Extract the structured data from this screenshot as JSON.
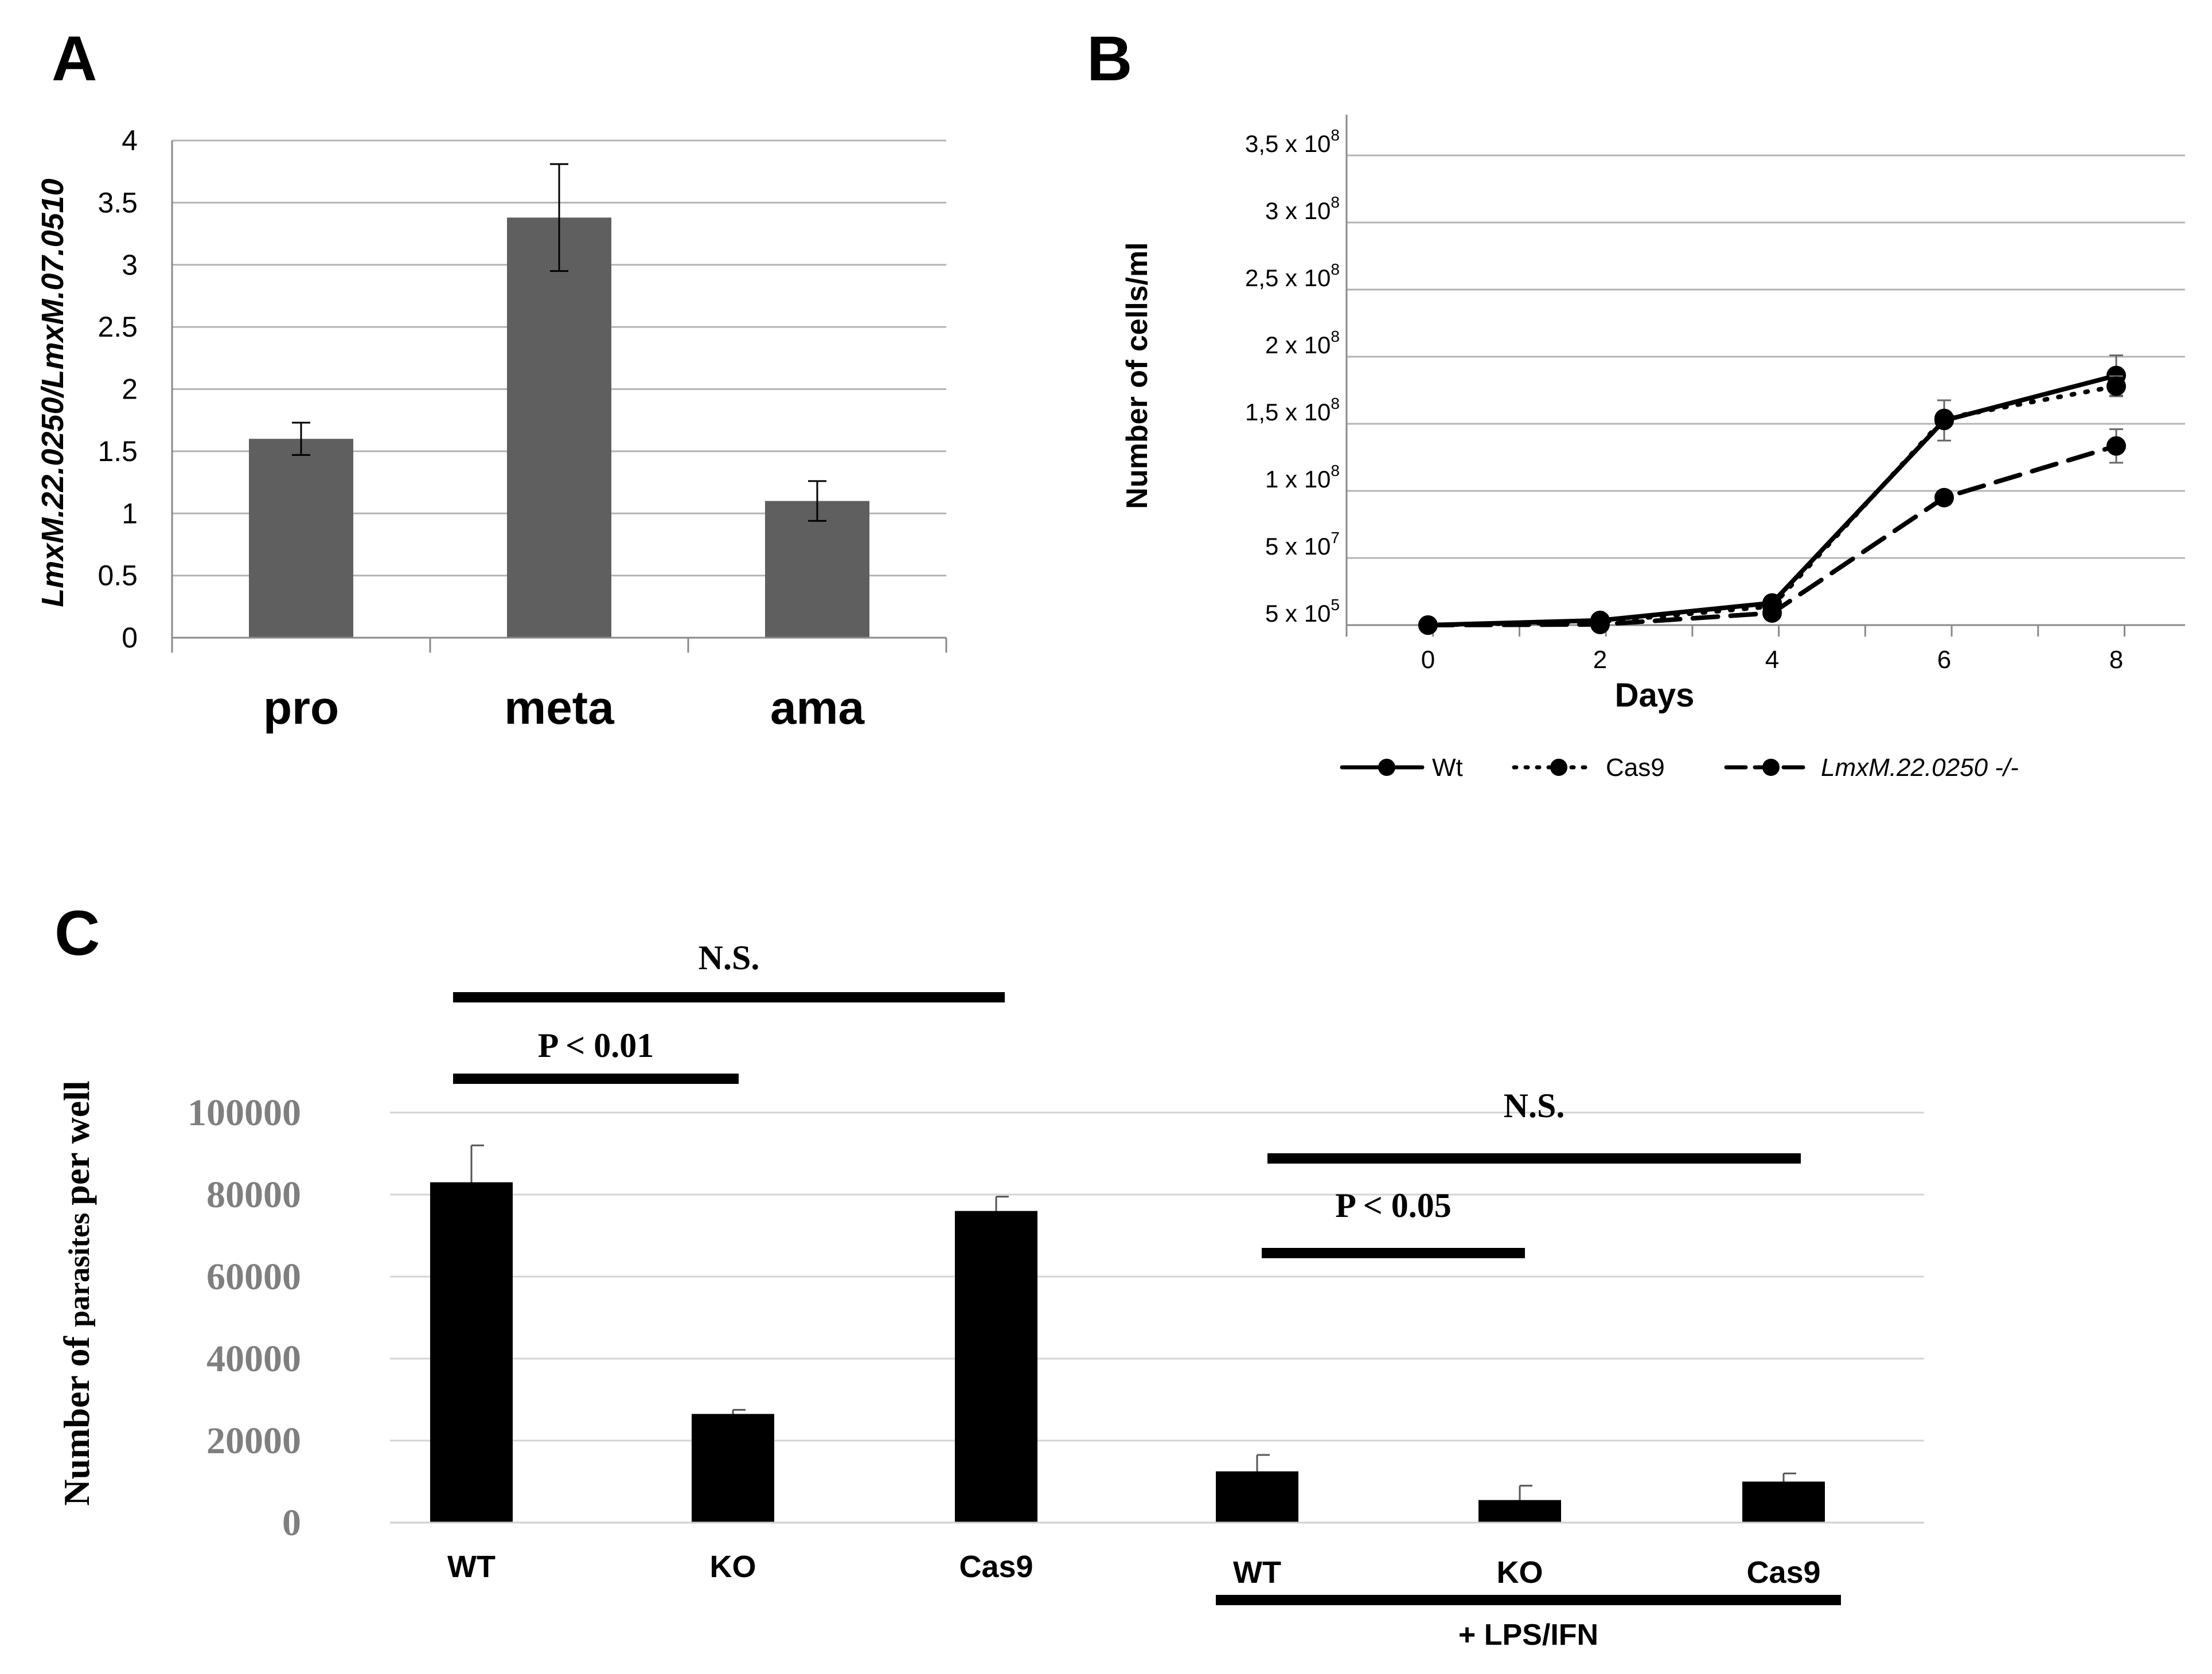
{
  "panels": {
    "a": {
      "letter": "A"
    },
    "b": {
      "letter": "B"
    },
    "c": {
      "letter": "C"
    }
  },
  "colors": {
    "bar_a": "#5f5f5f",
    "bar_c": "#000000",
    "grid": "#b4b4b4",
    "line": "#000000",
    "c_tick_labels": "#7f7f7f"
  },
  "chart_data": [
    {
      "panel": "A",
      "type": "bar",
      "categories": [
        "pro",
        "meta",
        "ama"
      ],
      "values": [
        1.6,
        3.38,
        1.1
      ],
      "errors": [
        0.13,
        0.43,
        0.16
      ],
      "ylabel": "LmxM.22.0250/LmxM.07.0510",
      "ylim": [
        0,
        4
      ],
      "yticks": [
        0,
        0.5,
        1,
        1.5,
        2,
        2.5,
        3,
        3.5,
        4
      ],
      "ytick_labels": [
        "0",
        "0.5",
        "1",
        "1.5",
        "2",
        "2.5",
        "3",
        "3.5",
        "4"
      ],
      "grid": true
    },
    {
      "panel": "B",
      "type": "line",
      "x": [
        0,
        2,
        4,
        6,
        8
      ],
      "xticks": [
        "0",
        "2",
        "4",
        "6",
        "8"
      ],
      "xlabel": "Days",
      "ylabel": "Number of cells/ml",
      "ytick_labels": [
        {
          "base": "5 x 10",
          "exp": "5"
        },
        {
          "base": "5 x 10",
          "exp": "7"
        },
        {
          "base": "1 x 10",
          "exp": "8"
        },
        {
          "base": "1,5 x 10",
          "exp": "8"
        },
        {
          "base": "2 x 10",
          "exp": "8"
        },
        {
          "base": "2,5 x 10",
          "exp": "8"
        },
        {
          "base": "3 x 10",
          "exp": "8"
        },
        {
          "base": "3,5 x 10",
          "exp": "8"
        }
      ],
      "grid": true,
      "legend_position": "bottom",
      "series": [
        {
          "name": "Wt",
          "style": "solid",
          "values": [
            0,
            0.07,
            0.33,
            3.05,
            3.72
          ],
          "errors": [
            0,
            0,
            0,
            0.3,
            0.3
          ]
        },
        {
          "name": "Cas9",
          "style": "dotted",
          "values": [
            0,
            0.05,
            0.28,
            3.08,
            3.56
          ],
          "errors": [
            0,
            0,
            0,
            0,
            0.15
          ]
        },
        {
          "name": "LmxM.22.0250 -/-",
          "style": "dashed",
          "values": [
            0,
            0.01,
            0.18,
            1.9,
            2.67
          ],
          "errors": [
            0,
            0,
            0,
            0.1,
            0.25
          ]
        }
      ]
    },
    {
      "panel": "C",
      "type": "bar",
      "categories": [
        "WT",
        "KO",
        "Cas9",
        "WT",
        "KO",
        "Cas9"
      ],
      "values": [
        83000,
        26500,
        76000,
        12500,
        5500,
        10000
      ],
      "errors": [
        9000,
        1000,
        3500,
        4000,
        3500,
        2000
      ],
      "ylabel_main": "Number of",
      "ylabel_small": "parasites",
      "ylabel_end": "per well",
      "ylim": [
        0,
        100000
      ],
      "yticks": [
        0,
        20000,
        40000,
        60000,
        80000,
        100000
      ],
      "ytick_labels": [
        "0",
        "20000",
        "40000",
        "60000",
        "80000",
        "100000"
      ],
      "grid": true,
      "group_label": "+ LPS/IFN",
      "annotations": [
        {
          "text": "N.S.",
          "from": 0,
          "to": 2,
          "level": 1
        },
        {
          "text": "P < 0.01",
          "from": 0,
          "to": 1,
          "level": 0
        },
        {
          "text": "N.S.",
          "from": 3,
          "to": 5,
          "level": 1
        },
        {
          "text": "P < 0.05",
          "from": 3,
          "to": 4,
          "level": 0
        }
      ]
    }
  ]
}
